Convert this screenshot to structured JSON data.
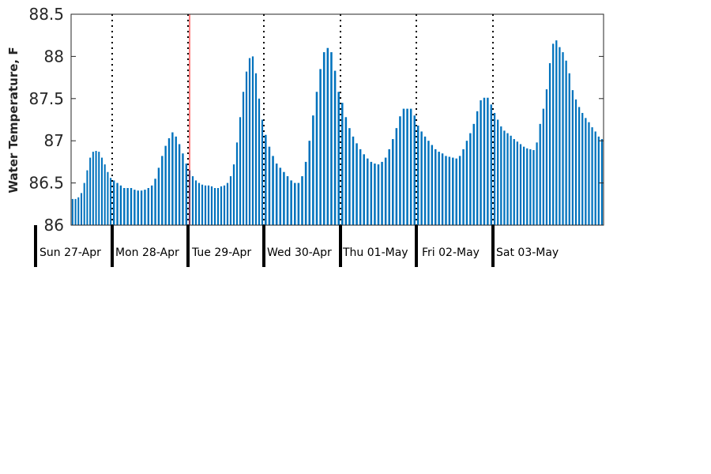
{
  "chart_data": {
    "type": "bar",
    "ylabel": "Water Temperature, F",
    "ylim": [
      86,
      88.5
    ],
    "yticks": [
      86,
      86.5,
      87,
      87.5,
      88,
      88.5
    ],
    "ytick_labels": [
      "86",
      "86.5",
      "87",
      "87.5",
      "88",
      "88.5"
    ],
    "bar_color": "#0072BD",
    "now_marker_color": "#FF0000",
    "grid": false,
    "days": [
      {
        "label": "Sun 27-Apr",
        "values": [
          86.31,
          86.31,
          86.33,
          86.38,
          86.5,
          86.65,
          86.8,
          86.87,
          86.88,
          86.87,
          86.8,
          86.72,
          86.63,
          86.56
        ]
      },
      {
        "label": "Mon 28-Apr",
        "values": [
          86.53,
          86.5,
          86.47,
          86.44,
          86.44,
          86.44,
          86.42,
          86.41,
          86.41,
          86.42,
          86.44,
          86.47,
          86.55,
          86.68,
          86.82,
          86.94,
          87.03,
          87.1,
          87.05,
          86.96,
          86.85,
          86.73
        ]
      },
      {
        "label": "Tue 29-Apr",
        "values": [
          86.65,
          86.58,
          86.53,
          86.5,
          86.48,
          86.47,
          86.47,
          86.46,
          86.44,
          86.44,
          86.46,
          86.47,
          86.5,
          86.58,
          86.72,
          86.98,
          87.28,
          87.58,
          87.82,
          87.98,
          88.0,
          87.8,
          87.5,
          87.25
        ]
      },
      {
        "label": "Wed 30-Apr",
        "values": [
          87.07,
          86.93,
          86.82,
          86.73,
          86.68,
          86.63,
          86.58,
          86.53,
          86.5,
          86.5,
          86.58,
          86.75,
          87.0,
          87.3,
          87.58,
          87.85,
          88.05,
          88.1,
          88.05,
          87.83,
          87.58
        ]
      },
      {
        "label": "Thu 01-May",
        "values": [
          87.45,
          87.28,
          87.15,
          87.05,
          86.97,
          86.9,
          86.84,
          86.79,
          86.75,
          86.73,
          86.72,
          86.75,
          86.8,
          86.9,
          87.02,
          87.15,
          87.29,
          87.38,
          87.38,
          87.38,
          87.3
        ]
      },
      {
        "label": "Fri 02-May",
        "values": [
          87.18,
          87.11,
          87.05,
          87.0,
          86.95,
          86.9,
          86.87,
          86.85,
          86.82,
          86.81,
          86.8,
          86.79,
          86.82,
          86.9,
          87.0,
          87.09,
          87.2,
          87.35,
          87.48,
          87.51,
          87.51,
          87.43
        ]
      },
      {
        "label": "Sat 03-May",
        "values": [
          87.33,
          87.25,
          87.17,
          87.12,
          87.09,
          87.06,
          87.02,
          86.99,
          86.96,
          86.93,
          86.91,
          86.9,
          86.89,
          86.98,
          87.2,
          87.38,
          87.61,
          87.92,
          88.15,
          88.19,
          88.11,
          88.05,
          87.95,
          87.8,
          87.6,
          87.49,
          87.4,
          87.33,
          87.27,
          87.22,
          87.16,
          87.11,
          87.05,
          87.02
        ]
      }
    ]
  }
}
